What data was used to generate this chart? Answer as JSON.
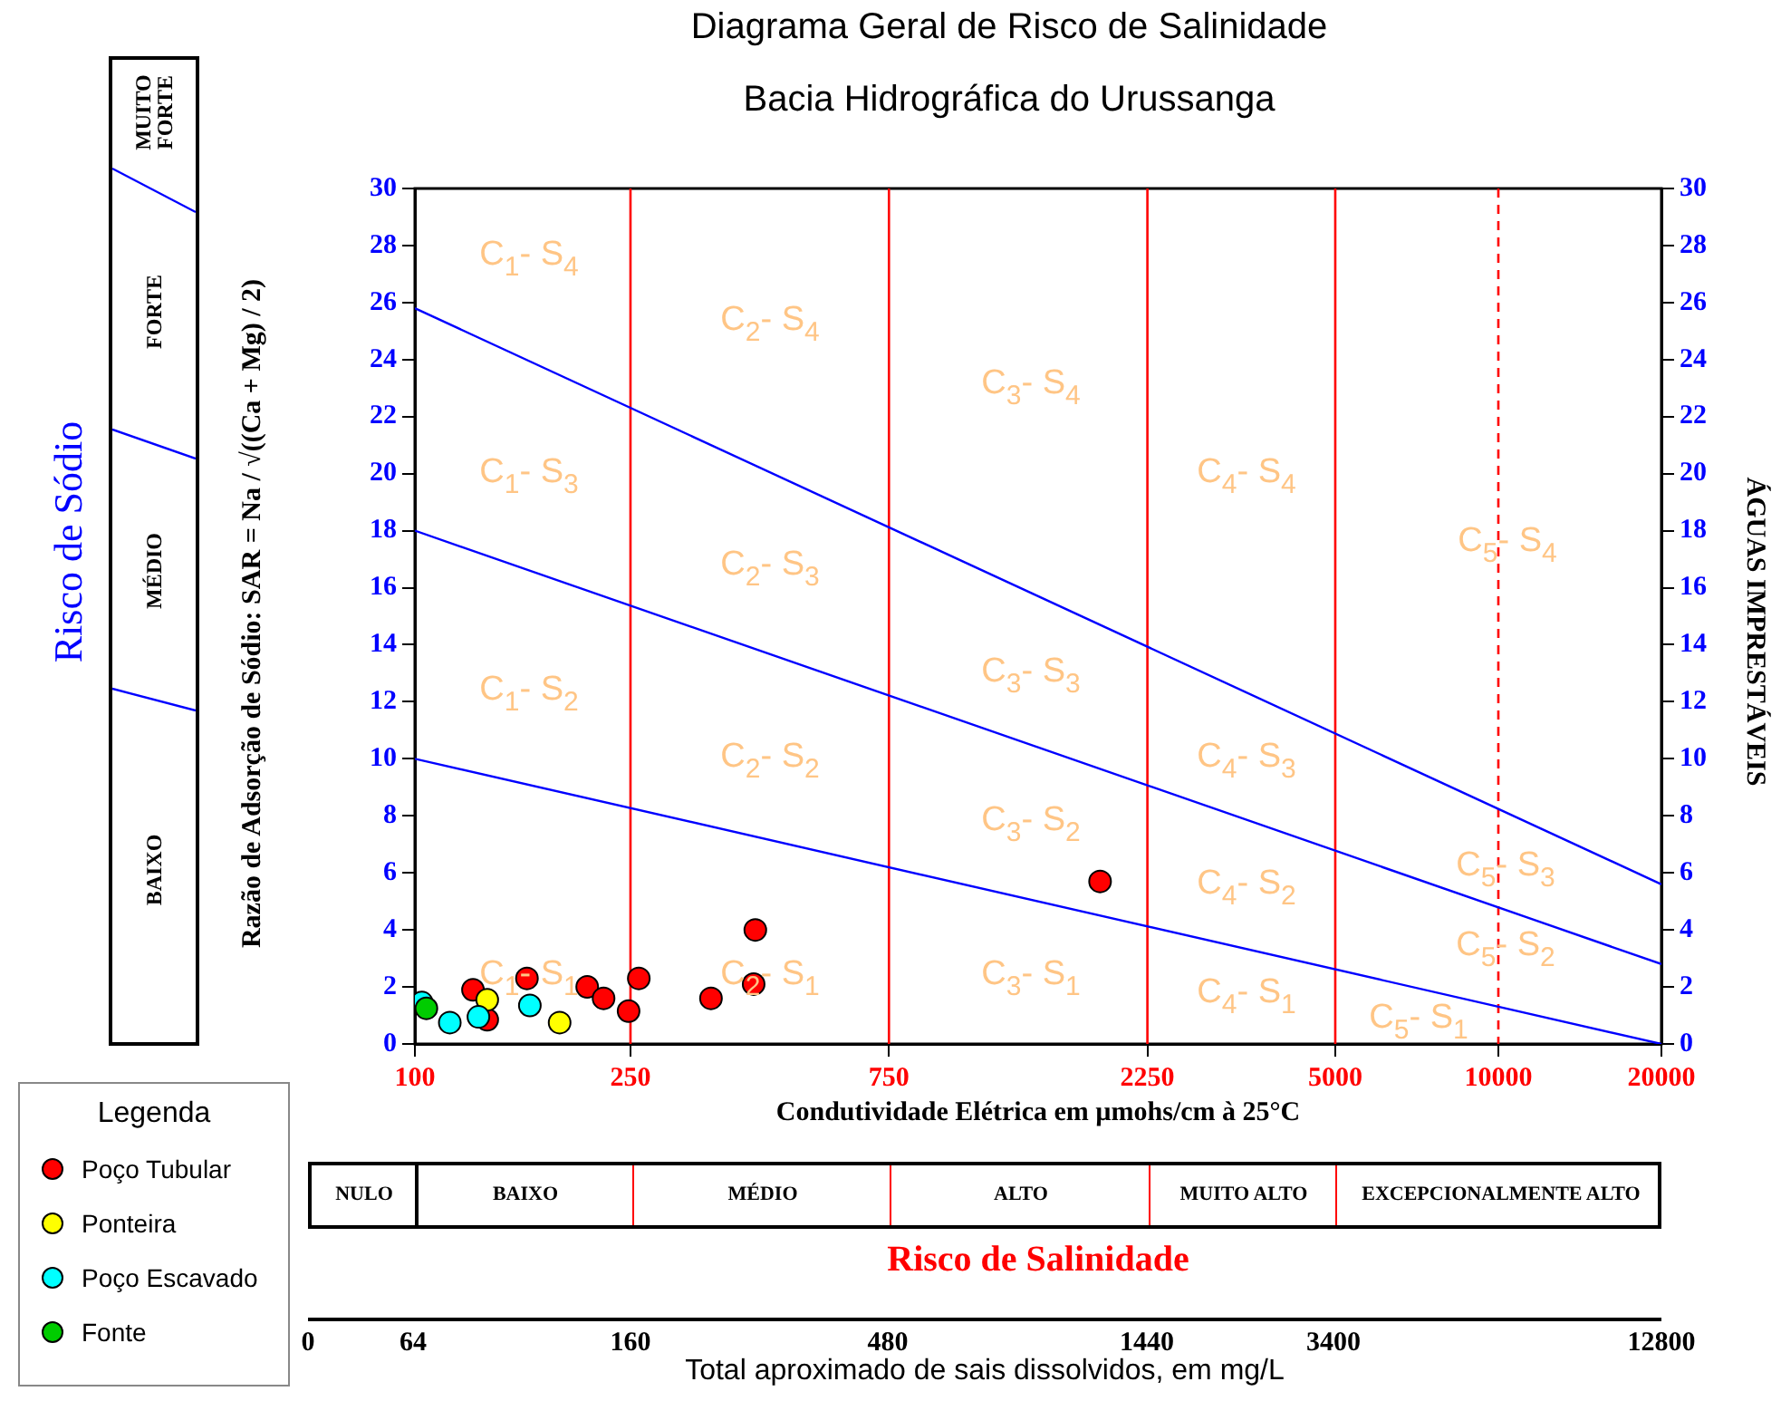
{
  "chart_data": {
    "type": "scatter",
    "title": "Diagrama Geral de Risco de Salinidade",
    "subtitle": "Bacia Hidrográfica do Urussanga",
    "xlabel": "Condutividade Elétrica em µmohs/cm à 25°C",
    "ylabel": "Razão de Adsorção de Sódio: SAR = Na / √((Ca + Mg) / 2)",
    "y2label": "ÁGUAS IMPRESTÁVEIS",
    "x2label": "Total aproximado de sais dissolvidos, em mg/L",
    "legend_title": "Legenda",
    "legend": "bottom left",
    "marker": "circle",
    "log": "x",
    "grid": false,
    "xlim": [
      100,
      20000
    ],
    "xticks": [
      100,
      250,
      750,
      2250,
      5000,
      10000,
      20000
    ],
    "ylim": [
      0,
      30
    ],
    "yticks": [
      0,
      2,
      4,
      6,
      8,
      10,
      12,
      14,
      16,
      18,
      20,
      22,
      24,
      26,
      28,
      30
    ],
    "y2lim": [
      0,
      30
    ],
    "y2ticks": [
      0,
      2,
      4,
      6,
      8,
      10,
      12,
      14,
      16,
      18,
      20,
      22,
      24,
      26,
      28,
      30
    ],
    "series": [
      {
        "type": "line",
        "marker": "none",
        "color": "#0000ff",
        "x": [
          100,
          20000
        ],
        "values": [
          10,
          0
        ]
      },
      {
        "type": "line",
        "marker": "none",
        "color": "#0000ff",
        "x": [
          100,
          20000
        ],
        "values": [
          18,
          2.8
        ]
      },
      {
        "type": "line",
        "marker": "none",
        "color": "#0000ff",
        "x": [
          100,
          20000
        ],
        "values": [
          25.8,
          5.6
        ]
      },
      {
        "name": "Poço Tubular",
        "color": "#ff0000",
        "x": [
          128,
          136,
          161,
          208,
          223,
          248,
          259,
          352,
          425,
          422,
          1840
        ],
        "values": [
          1.9,
          0.85,
          2.3,
          2.0,
          1.6,
          1.15,
          2.3,
          1.6,
          4.0,
          2.1,
          5.7
        ]
      },
      {
        "name": "Ponteira",
        "color": "#ffff00",
        "x": [
          136,
          185
        ],
        "values": [
          1.55,
          0.75
        ]
      },
      {
        "name": "Poço Escavado",
        "color": "#00ffff",
        "x": [
          103,
          116,
          131,
          163
        ],
        "values": [
          1.45,
          0.75,
          0.95,
          1.35
        ]
      },
      {
        "name": "Fonte",
        "color": "#00cc00",
        "x": [
          105
        ],
        "values": [
          1.25
        ]
      }
    ],
    "ref_lines": [
      {
        "axis": "x",
        "value": 250,
        "color": "#ff0000"
      },
      {
        "axis": "x",
        "value": 750,
        "color": "#ff0000"
      },
      {
        "axis": "x",
        "value": 2250,
        "color": "#ff0000"
      },
      {
        "axis": "x",
        "value": 5000,
        "color": "#ff0000"
      },
      {
        "axis": "x",
        "value": 10000,
        "color": "#ff0000",
        "line_style": "dashed"
      }
    ],
    "annotations": [
      "C$_{1}$- S$_{4}$",
      "C$_{2}$- S$_{4}$",
      "C$_{3}$- S$_{4}$",
      "C$_{4}$- S$_{4}$",
      "C$_{5}$- S$_{4}$",
      "C$_{1}$- S$_{3}$",
      "C$_{2}$- S$_{3}$",
      "C$_{3}$- S$_{3}$",
      "C$_{4}$- S$_{3}$",
      "C$_{5}$- S$_{3}$",
      "C$_{1}$- S$_{2}$",
      "C$_{2}$- S$_{2}$",
      "C$_{3}$- S$_{2}$",
      "C$_{4}$- S$_{2}$",
      "C$_{5}$- S$_{2}$",
      "C$_{1}$- S$_{1}$",
      "C$_{2}$- S$_{1}$",
      "C$_{3}$- S$_{1}$",
      "C$_{4}$- S$_{1}$",
      "C$_{5}$- S$_{1}$",
      "NULO",
      "BAIXO",
      "MÉDIO",
      "ALTO",
      "MUITO ALTO",
      "EXCEPCIONALMENTE ALTO",
      "Risco de Salinidade",
      "0",
      "64",
      "160",
      "480",
      "1440",
      "3400",
      "12800",
      "MUITO FORTE",
      "FORTE",
      "MÉDIO",
      "BAIXO",
      "Risco de Sódio"
    ]
  }
}
